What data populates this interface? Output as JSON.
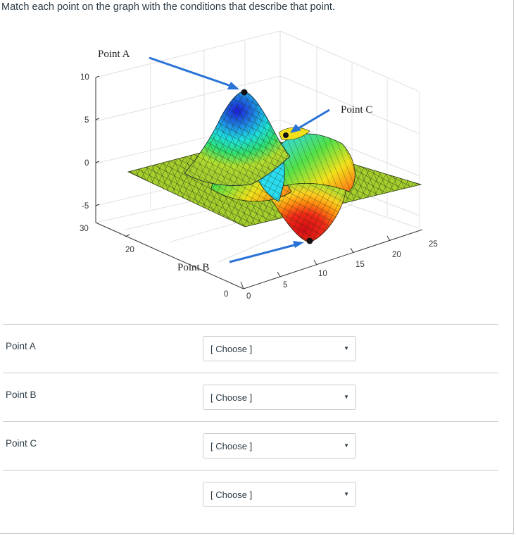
{
  "question": "Match each point on the graph with the conditions that describe that point.",
  "graph": {
    "annotations": {
      "point_a": "Point A",
      "point_b": "Point B",
      "point_c": "Point C"
    },
    "z_ticks": [
      "10",
      "5",
      "0",
      "-5"
    ],
    "y_ticks": [
      "30",
      "20",
      "0"
    ],
    "x_ticks": [
      "0",
      "5",
      "10",
      "15",
      "20",
      "25"
    ],
    "surface_colors": {
      "peak": "#1e1ee0",
      "valley": "#e0141e",
      "flat": "#9ccc32",
      "arrow": "#2a73d6"
    }
  },
  "rows": [
    {
      "label": "Point A",
      "select": "[ Choose ]"
    },
    {
      "label": "Point B",
      "select": "[ Choose ]"
    },
    {
      "label": "Point C",
      "select": "[ Choose ]"
    },
    {
      "label": "",
      "select": "[ Choose ]"
    }
  ],
  "select_arrow_icon": "▼"
}
